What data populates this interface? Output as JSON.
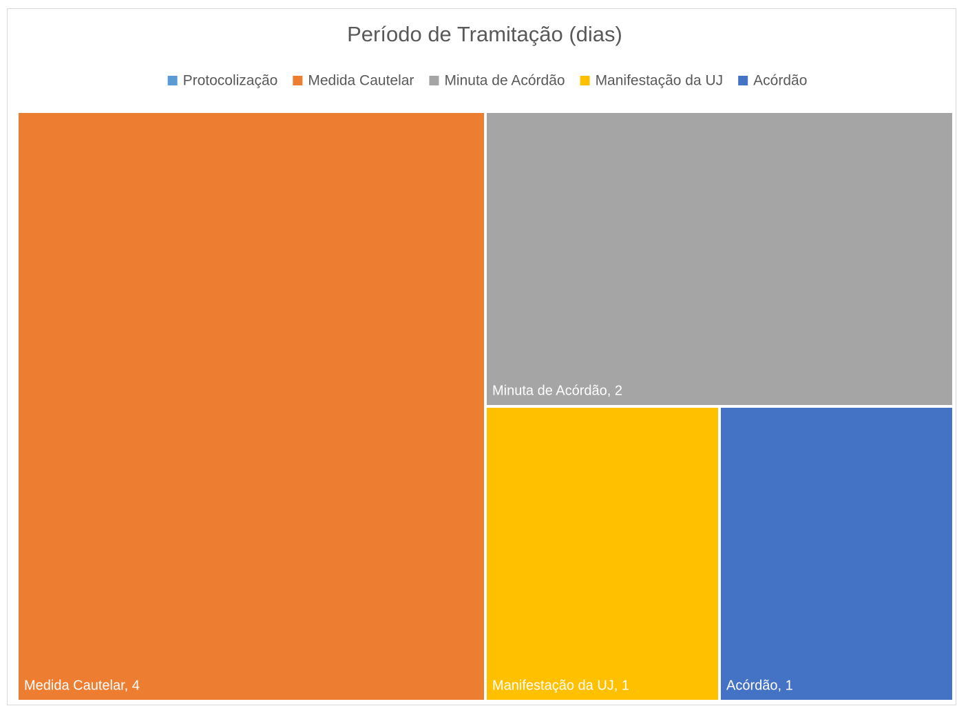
{
  "chart_data": {
    "type": "treemap",
    "title": "Período de Tramitação (dias)",
    "categories": [
      "Protocolização",
      "Medida Cautelar",
      "Minuta de Acórdão",
      "Manifestação da UJ",
      "Acórdão"
    ],
    "values": [
      0,
      4,
      2,
      1,
      1
    ],
    "value_labels": [
      null,
      "Medida Cautelar, 4",
      "Minuta de Acórdão, 2",
      "Manifestação da UJ, 1",
      "Acórdão, 1"
    ],
    "colors": [
      "#5b9bd5",
      "#ed7d31",
      "#a5a5a5",
      "#ffc000",
      "#4472c4"
    ],
    "legend": "top"
  }
}
